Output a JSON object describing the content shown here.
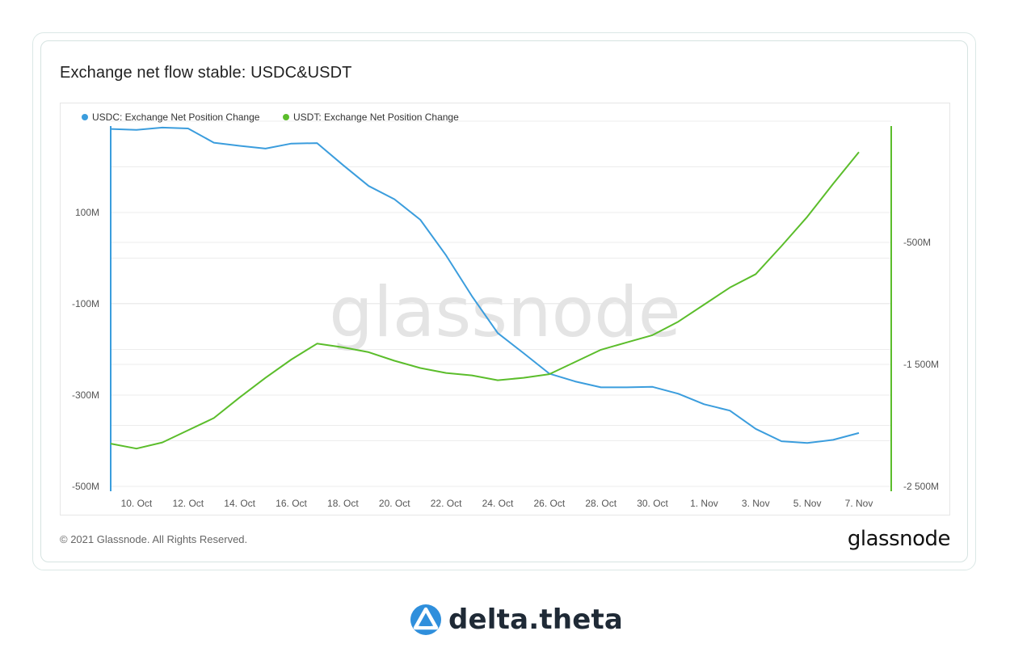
{
  "header": {
    "title": "Exchange net flow stable: USDC&USDT"
  },
  "footer": {
    "copyright": "© 2021 Glassnode. All Rights Reserved.",
    "brand": "glassnode"
  },
  "watermark": "glassnode",
  "bottom_logo": {
    "text": "delta.theta",
    "icon": "delta-theta-logo-icon"
  },
  "colors": {
    "usdc": "#3b9ddd",
    "usdt": "#5bbd2b",
    "grid": "#ececec"
  },
  "chart_data": {
    "type": "line",
    "x": [
      "9. Oct",
      "10. Oct",
      "11. Oct",
      "12. Oct",
      "13. Oct",
      "14. Oct",
      "15. Oct",
      "16. Oct",
      "17. Oct",
      "18. Oct",
      "19. Oct",
      "20. Oct",
      "21. Oct",
      "22. Oct",
      "23. Oct",
      "24. Oct",
      "25. Oct",
      "26. Oct",
      "27. Oct",
      "28. Oct",
      "29. Oct",
      "30. Oct",
      "31. Oct",
      "1. Nov",
      "2. Nov",
      "3. Nov",
      "4. Nov",
      "5. Nov",
      "6. Nov",
      "7. Nov"
    ],
    "x_tick_labels": [
      "10. Oct",
      "12. Oct",
      "14. Oct",
      "16. Oct",
      "18. Oct",
      "20. Oct",
      "22. Oct",
      "24. Oct",
      "26. Oct",
      "28. Oct",
      "30. Oct",
      "1. Nov",
      "3. Nov",
      "5. Nov",
      "7. Nov"
    ],
    "series": [
      {
        "name": "USDC: Exchange Net Position Change",
        "axis": "left",
        "values": [
          283,
          281,
          286,
          284,
          253,
          246,
          240,
          251,
          252,
          204,
          158,
          129,
          84,
          6,
          -83,
          -164,
          -208,
          -253,
          -270,
          -283,
          -283,
          -282,
          -297,
          -320,
          -334,
          -374,
          -401,
          -405,
          -398,
          -383
        ]
      },
      {
        "name": "USDT: Exchange Net Position Change",
        "axis": "right",
        "values": [
          -2150,
          -2190,
          -2140,
          -2040,
          -1940,
          -1770,
          -1610,
          -1460,
          -1330,
          -1360,
          -1400,
          -1470,
          -1530,
          -1570,
          -1590,
          -1630,
          -1610,
          -1580,
          -1480,
          -1380,
          -1320,
          -1260,
          -1150,
          -1010,
          -870,
          -760,
          -530,
          -290,
          -20,
          240
        ]
      }
    ],
    "y_left": {
      "ticks": [
        "100M",
        "-100M",
        "-300M",
        "-500M"
      ],
      "range": [
        -500,
        300
      ]
    },
    "y_right": {
      "ticks": [
        "-500M",
        "-1 500M",
        "-2 500M"
      ],
      "range": [
        -2500,
        500
      ]
    },
    "legend": "top-left",
    "grid": true
  }
}
